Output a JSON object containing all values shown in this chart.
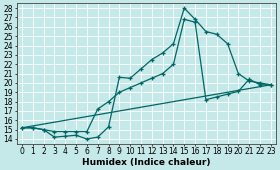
{
  "xlabel": "Humidex (Indice chaleur)",
  "bg_color": "#c5e8e8",
  "grid_color": "#aed4d4",
  "line_color": "#006666",
  "xlim": [
    -0.5,
    23.5
  ],
  "ylim": [
    13.5,
    28.5
  ],
  "xticks": [
    0,
    1,
    2,
    3,
    4,
    5,
    6,
    7,
    8,
    9,
    10,
    11,
    12,
    13,
    14,
    15,
    16,
    17,
    18,
    19,
    20,
    21,
    22,
    23
  ],
  "yticks": [
    14,
    15,
    16,
    17,
    18,
    19,
    20,
    21,
    22,
    23,
    24,
    25,
    26,
    27,
    28
  ],
  "line1_x": [
    0,
    1,
    2,
    3,
    4,
    5,
    6,
    7,
    8,
    9,
    10,
    11,
    12,
    13,
    14,
    15,
    16,
    17,
    18,
    19,
    20,
    21,
    22,
    23
  ],
  "line1_y": [
    15.2,
    15.2,
    15.0,
    14.2,
    14.3,
    14.4,
    14.0,
    14.2,
    15.3,
    20.6,
    20.5,
    21.5,
    22.5,
    23.2,
    24.2,
    28.0,
    26.8,
    25.5,
    25.2,
    24.2,
    21.0,
    20.2,
    20.0,
    19.8
  ],
  "line2_x": [
    0,
    1,
    2,
    3,
    4,
    5,
    6,
    7,
    8,
    9,
    10,
    11,
    12,
    13,
    14,
    15,
    16,
    17,
    18,
    19,
    20,
    21,
    22,
    23
  ],
  "line2_y": [
    15.2,
    15.2,
    15.0,
    14.8,
    14.8,
    14.8,
    14.8,
    17.2,
    18.0,
    19.0,
    19.5,
    20.0,
    20.5,
    21.0,
    22.0,
    26.8,
    26.5,
    18.2,
    18.5,
    18.8,
    19.1,
    20.4,
    19.8,
    19.8
  ],
  "line3_x": [
    0,
    23
  ],
  "line3_y": [
    15.2,
    19.8
  ],
  "tick_fontsize": 5.5,
  "xlabel_fontsize": 6.5
}
